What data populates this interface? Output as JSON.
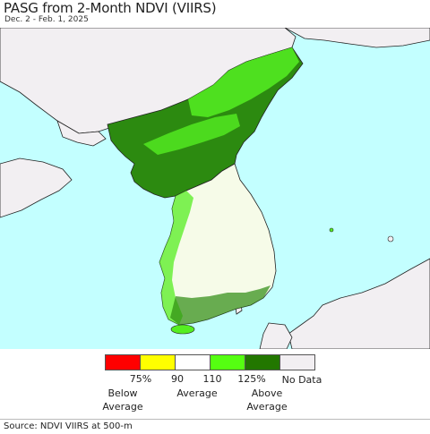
{
  "header": {
    "title": "PASG from 2-Month NDVI (VIIRS)",
    "subtitle": "Dec. 2 - Feb. 1, 2025"
  },
  "legend": {
    "swatches": [
      {
        "color": "#ff0000"
      },
      {
        "color": "#ffff00"
      },
      {
        "color": "#ffffff"
      },
      {
        "color": "#55ff11"
      },
      {
        "color": "#227700"
      },
      {
        "color": "#f2eff2"
      }
    ],
    "ticks": [
      "75%",
      "90",
      "110",
      "125%"
    ],
    "labels": {
      "below_1": "Below",
      "below_2": "Average",
      "average": "Average",
      "above_1": "Above",
      "above_2": "Average",
      "nodata": "No Data"
    }
  },
  "colors": {
    "ocean": "#c3ffff",
    "land_nodata": "#f2eff2",
    "korea_dark_green": "#2c8a10",
    "korea_green": "#55ee22",
    "south_korea_white": "#f6fbe8"
  },
  "footer": {
    "source": "Source: NDVI VIIRS at 500-m"
  }
}
